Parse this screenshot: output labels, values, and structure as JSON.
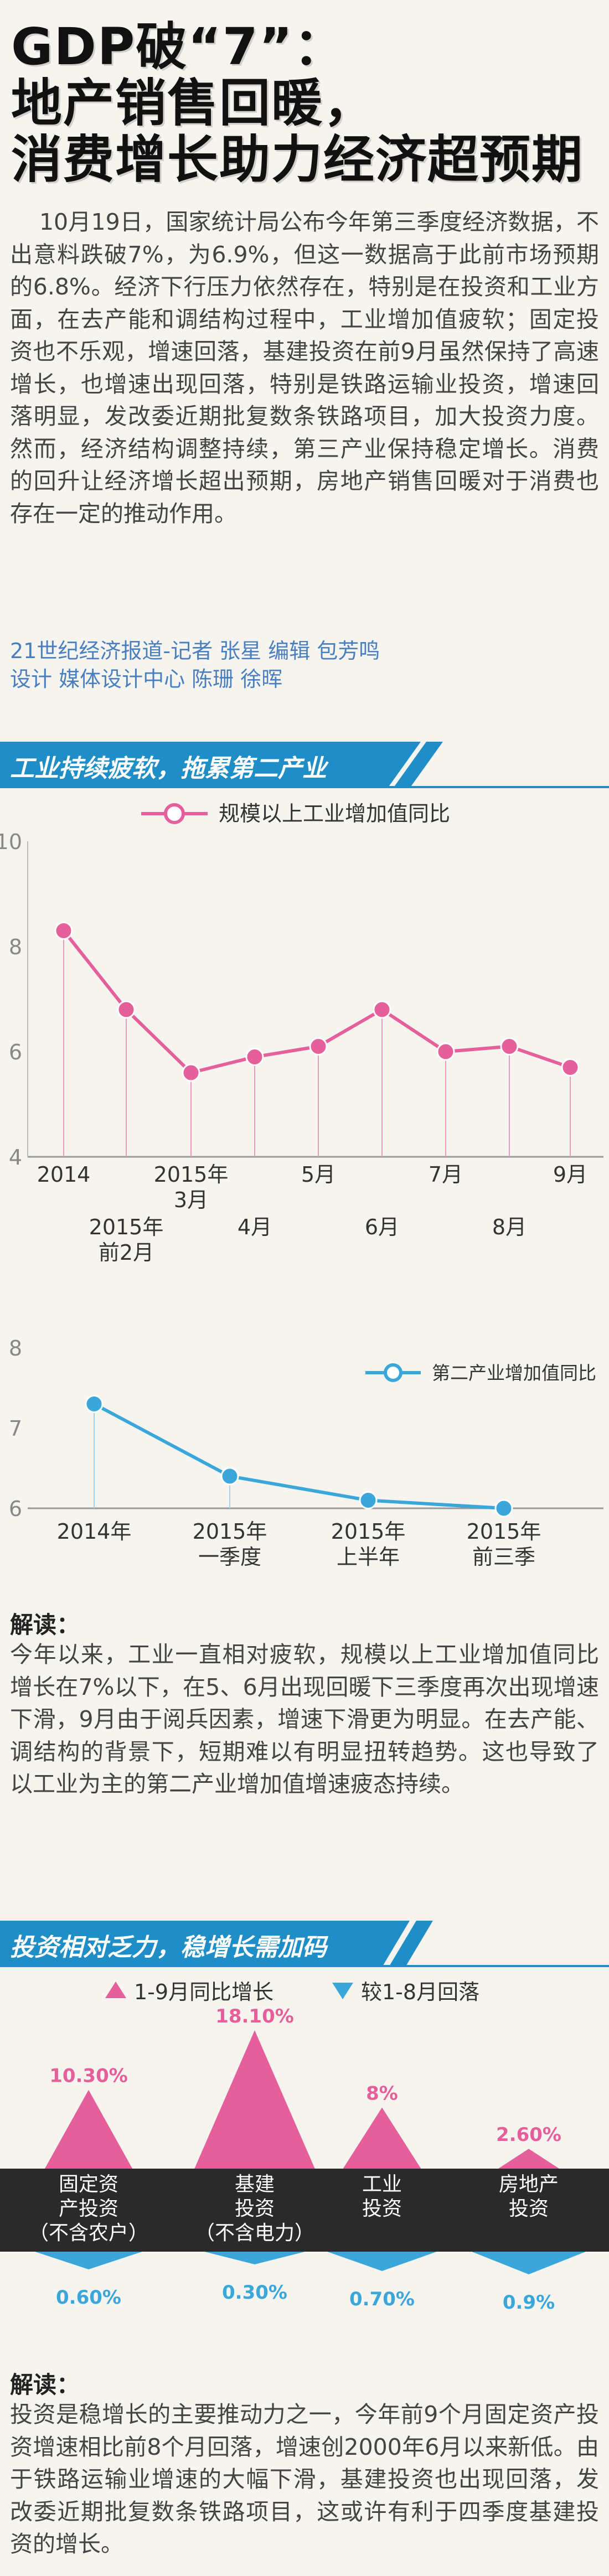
{
  "colors": {
    "pink": "#e55f9a",
    "blue": "#3aa6da",
    "banner": "#1f8ec6",
    "dark": "#333333",
    "credit": "#4a7fbf"
  },
  "title": {
    "line1": "GDP破“7”：",
    "line2": "地产销售回暖，",
    "line3": "消费增长助力经济超预期"
  },
  "intro": {
    "text": "    10月19日，国家统计局公布今年第三季度经济数据，不出意料跌破7%，为6.9%，但这一数据高于此前市场预期的6.8%。经济下行压力依然存在，特别是在投资和工业方面，在去产能和调结构过程中，工业增加值疲软；固定投资也不乐观，增速回落，基建投资在前9月虽然保持了高速增长，也增速出现回落，特别是铁路运输业投资，增速回落明显，发改委近期批复数条铁路项目，加大投资力度。然而，经济结构调整持续，第三产业保持稳定增长。消费的回升让经济增长超出预期，房地产销售回暖对于消费也存在一定的推动作用。"
  },
  "credits": {
    "line1": "21世纪经济报道-记者 张星   编辑 包芳鸣",
    "line2": "设计 媒体设计中心 陈珊 徐晖"
  },
  "section1": {
    "banner": "工业持续疲软，拖累第二产业",
    "reading_label": "解读：",
    "reading_text": "今年以来，工业一直相对疲软，规模以上工业增加值同比增长在7%以下，在5、6月出现回暖下三季度再次出现增速下滑，9月由于阅兵因素，增速下滑更为明显。在去产能、调结构的背景下，短期难以有明显扭转趋势。这也导致了以工业为主的第二产业增加值增速疲态持续。"
  },
  "section2": {
    "banner": "投资相对乏力，稳增长需加码",
    "legend_up": "1-9月同比增长",
    "legend_down": "较1-8月回落",
    "reading_label": "解读：",
    "reading_text": "投资是稳增长的主要推动力之一，今年前9个月固定资产投资增速相比前8个月回落，增速创2000年6月以来新低。由于铁路运输业增速的大幅下滑，基建投资也出现回落，发改委近期批复数条铁路项目，这或许有利于四季度基建投资的增长。"
  },
  "chart_data": [
    {
      "type": "line",
      "legend": "规模以上工业增加值同比",
      "categories": [
        "2014",
        "2015年前2月",
        "2015年3月",
        "4月",
        "5月",
        "6月",
        "7月",
        "8月",
        "9月"
      ],
      "values": [
        8.3,
        6.8,
        5.6,
        5.9,
        6.1,
        6.8,
        6.0,
        6.1,
        5.7
      ],
      "yticks": [
        "4",
        "6",
        "8",
        "10"
      ],
      "ylim": [
        4,
        10
      ]
    },
    {
      "type": "line",
      "legend": "第二产业增加值同比",
      "categories": [
        "2014年",
        "2015年一季度",
        "2015年上半年",
        "2015年前三季"
      ],
      "values": [
        7.3,
        6.4,
        6.1,
        6.0
      ],
      "yticks": [
        "6",
        "7",
        "8"
      ],
      "ylim": [
        6,
        8
      ]
    },
    {
      "type": "bar",
      "title": "投资相对乏力，稳增长需加码",
      "categories": [
        "固定资产投资（不含农户）",
        "基建投资（不含电力）",
        "工业投资",
        "房地产投资"
      ],
      "series": [
        {
          "name": "1-9月同比增长",
          "values": [
            10.3,
            18.1,
            8.0,
            2.6
          ]
        },
        {
          "name": "较1-8月回落",
          "values": [
            0.6,
            0.3,
            0.7,
            0.9
          ]
        }
      ],
      "value_labels_up": [
        "10.30%",
        "18.10%",
        "8%",
        "2.60%"
      ],
      "value_labels_down": [
        "0.60%",
        "0.30%",
        "0.70%",
        "0.9%"
      ]
    }
  ]
}
